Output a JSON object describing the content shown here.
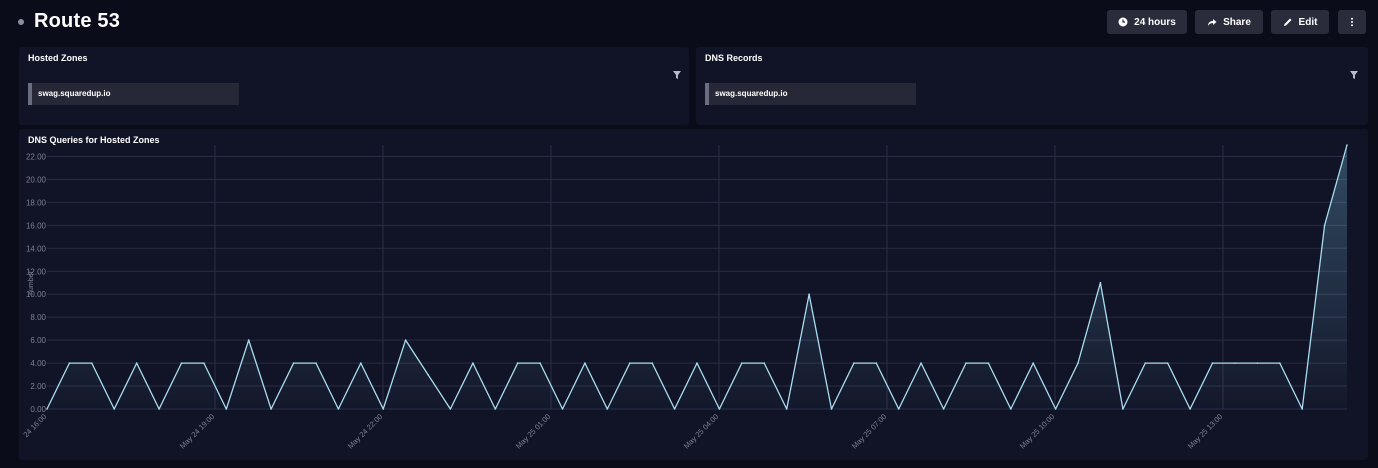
{
  "header": {
    "title": "Route 53",
    "buttons": {
      "time_range": "24 hours",
      "share": "Share",
      "edit": "Edit"
    }
  },
  "hosted_zones": {
    "title": "Hosted Zones",
    "selected": "swag.squaredup.io"
  },
  "dns_records": {
    "title": "DNS Records",
    "selected": "swag.squaredup.io"
  },
  "chart_panel": {
    "title": "DNS Queries for Hosted Zones"
  },
  "colors": {
    "background": "#0b0c1a",
    "panel": "#111326",
    "line": "#a8dcef",
    "button": "#2a2c3b"
  },
  "chart_data": {
    "type": "area",
    "title": "DNS Queries for Hosted Zones",
    "xlabel": "",
    "ylabel": "number",
    "ylim": [
      0,
      23
    ],
    "yticks": [
      "0.00",
      "2.00",
      "4.00",
      "6.00",
      "8.00",
      "10.00",
      "12.00",
      "14.00",
      "16.00",
      "18.00",
      "20.00",
      "22.00"
    ],
    "xtick_labels": [
      "24 16:00",
      "May 24 19:00",
      "May 24 22:00",
      "May 25 01:00",
      "May 25 04:00",
      "May 25 07:00",
      "May 25 10:00",
      "May 25 13:00"
    ],
    "grid": true,
    "legend": "none",
    "series": [
      {
        "values": [
          0,
          4,
          4,
          0,
          4,
          0,
          4,
          4,
          0,
          6,
          0,
          4,
          4,
          0,
          4,
          0,
          6,
          3,
          0,
          4,
          0,
          4,
          4,
          0,
          4,
          0,
          4,
          4,
          0,
          4,
          0,
          4,
          4,
          0,
          10,
          0,
          4,
          4,
          0,
          4,
          0,
          4,
          4,
          0,
          4,
          0,
          4,
          11,
          0,
          4,
          4,
          0,
          4,
          4,
          4,
          4,
          0,
          16,
          23
        ]
      }
    ]
  }
}
